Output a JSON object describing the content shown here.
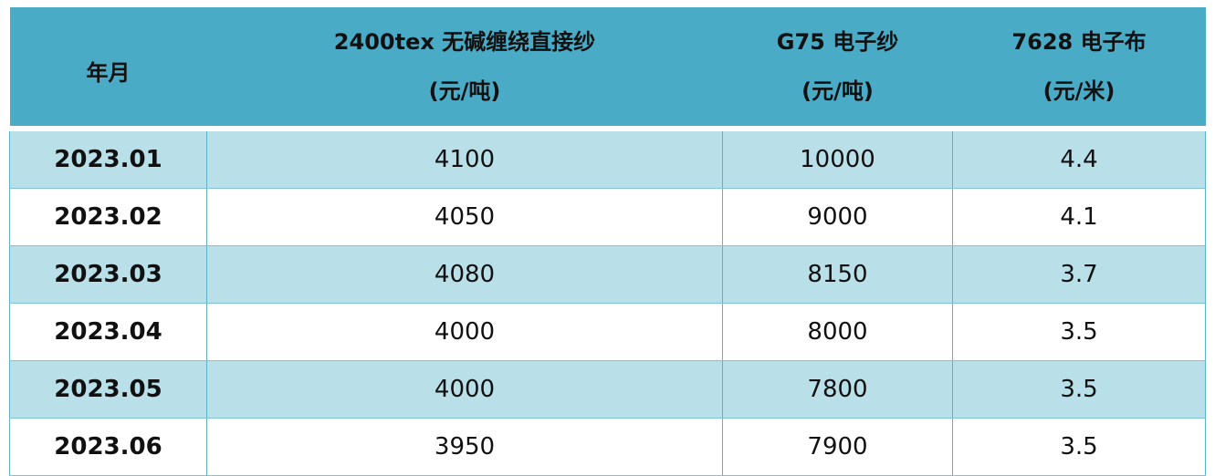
{
  "table": {
    "headers": [
      {
        "line1": "年月",
        "line2": ""
      },
      {
        "line1": "2400tex 无碱缠绕直接纱",
        "line2": "(元/吨)"
      },
      {
        "line1": "G75 电子纱",
        "line2": "(元/吨)"
      },
      {
        "line1": "7628 电子布",
        "line2": "(元/米)"
      }
    ],
    "rows": [
      {
        "month": "2023.01",
        "roving": "4100",
        "g75": "10000",
        "cloth": "4.4"
      },
      {
        "month": "2023.02",
        "roving": "4050",
        "g75": "9000",
        "cloth": "4.1"
      },
      {
        "month": "2023.03",
        "roving": "4080",
        "g75": "8150",
        "cloth": "3.7"
      },
      {
        "month": "2023.04",
        "roving": "4000",
        "g75": "8000",
        "cloth": "3.5"
      },
      {
        "month": "2023.05",
        "roving": "4000",
        "g75": "7800",
        "cloth": "3.5"
      },
      {
        "month": "2023.06",
        "roving": "3950",
        "g75": "7900",
        "cloth": "3.5"
      }
    ]
  },
  "colors": {
    "header_bg": "#4aabc6",
    "odd_row_bg": "#b9dfe9",
    "even_row_bg": "#ffffff"
  }
}
